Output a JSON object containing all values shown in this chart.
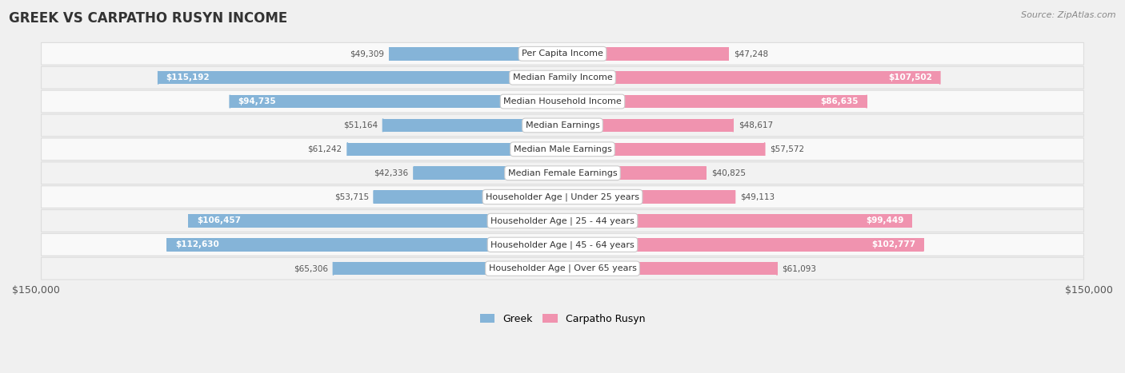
{
  "title": "GREEK VS CARPATHO RUSYN INCOME",
  "source": "Source: ZipAtlas.com",
  "categories": [
    "Per Capita Income",
    "Median Family Income",
    "Median Household Income",
    "Median Earnings",
    "Median Male Earnings",
    "Median Female Earnings",
    "Householder Age | Under 25 years",
    "Householder Age | 25 - 44 years",
    "Householder Age | 45 - 64 years",
    "Householder Age | Over 65 years"
  ],
  "greek_values": [
    49309,
    115192,
    94735,
    51164,
    61242,
    42336,
    53715,
    106457,
    112630,
    65306
  ],
  "rusyn_values": [
    47248,
    107502,
    86635,
    48617,
    57572,
    40825,
    49113,
    99449,
    102777,
    61093
  ],
  "greek_color": "#85b4d8",
  "rusyn_color": "#f093af",
  "bar_text_dark": "#555555",
  "bar_text_white": "#ffffff",
  "max_value": 150000,
  "background_color": "#f0f0f0",
  "row_bg_even": "#f9f9f9",
  "row_bg_odd": "#f2f2f2",
  "row_border_color": "#dddddd",
  "center_label_bg": "#ffffff",
  "center_label_border": "#cccccc",
  "title_color": "#333333",
  "source_color": "#888888",
  "legend_greek": "#85b4d8",
  "legend_rusyn": "#f093af",
  "greek_threshold": 70000,
  "rusyn_threshold": 70000
}
